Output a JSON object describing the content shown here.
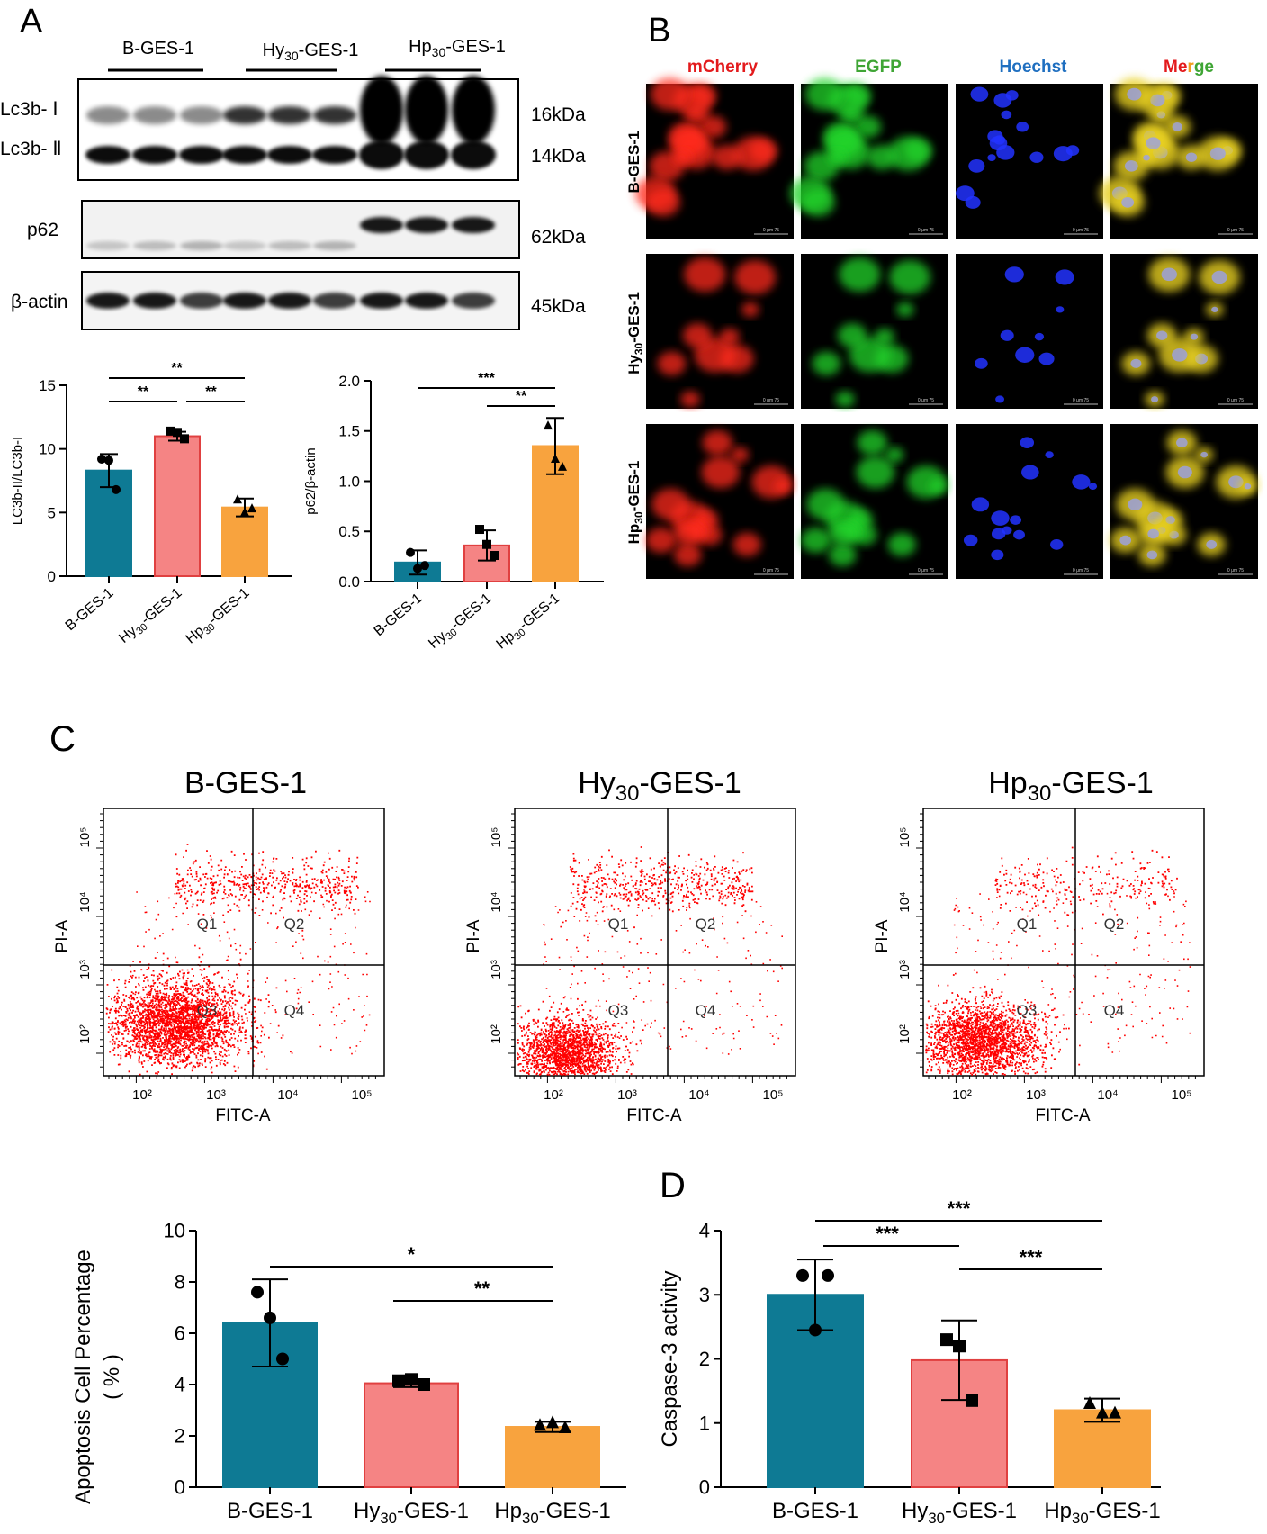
{
  "panel_labels": {
    "a": "A",
    "b": "B",
    "c": "C",
    "d": "D"
  },
  "colors": {
    "teal": "#0e7a94",
    "pink": "#f58484",
    "orange": "#f8a33e",
    "mcherry": "#e31a1c",
    "egfp": "#3fa535",
    "hoechst": "#1f6fc0",
    "flow": "#ff0000"
  },
  "western": {
    "groups": [
      {
        "base": "B-GES-1",
        "sub": ""
      },
      {
        "base": "Hy",
        "sub": "30",
        "rest": "-GES-1"
      },
      {
        "base": "Hp",
        "sub": "30",
        "rest": "-GES-1"
      }
    ],
    "lc3_label_1": "Lc3b- Ⅰ",
    "lc3_label_2": "Lc3b- Ⅱ",
    "p62_label": "p62",
    "actin_label": "β-actin",
    "kda_16": "16kDa",
    "kda_14": "14kDa",
    "kda_62": "62kDa",
    "kda_45": "45kDa"
  },
  "fluorescence": {
    "channels": [
      "mCherry",
      "EGFP",
      "Hoechst",
      "Merge"
    ],
    "merge_letters": [
      "Me",
      "r",
      "ge"
    ],
    "rows": [
      {
        "base": "B-GES-1",
        "sub": "",
        "rest": ""
      },
      {
        "base": "Hy",
        "sub": "30",
        "rest": "-GES-1"
      },
      {
        "base": "Hp",
        "sub": "30",
        "rest": "-GES-1"
      }
    ],
    "scale_text": "0    μm    75"
  },
  "flow": {
    "titles": [
      {
        "base": "B-GES-1",
        "sub": "",
        "rest": ""
      },
      {
        "base": "Hy",
        "sub": "30",
        "rest": "-GES-1"
      },
      {
        "base": "Hp",
        "sub": "30",
        "rest": "-GES-1"
      }
    ],
    "xlabel": "FITC-A",
    "ylabel": "PI-A",
    "quadrants": [
      "Q1",
      "Q2",
      "Q3",
      "Q4"
    ],
    "x_ticks": [
      "10²",
      "10³",
      "10⁴",
      "10⁵"
    ],
    "y_ticks": [
      "10²",
      "10³",
      "10⁴",
      "10⁵"
    ]
  },
  "chart_data": [
    {
      "id": "lc3-ratio",
      "type": "bar",
      "categories": [
        {
          "base": "B-GES-1",
          "sub": "",
          "rest": ""
        },
        {
          "base": "Hy",
          "sub": "30",
          "rest": "-GES-1"
        },
        {
          "base": "Hp",
          "sub": "30",
          "rest": "-GES-1"
        }
      ],
      "values": [
        8.3,
        11.0,
        5.4
      ],
      "errors": [
        1.3,
        0.35,
        0.7
      ],
      "points": [
        [
          9.2,
          9.1,
          6.8
        ],
        [
          11.4,
          11.3,
          10.8
        ],
        [
          6.0,
          5.0,
          5.3
        ]
      ],
      "markers": [
        "circle",
        "square",
        "triangle"
      ],
      "ylabel": "LC3b-II/LC3b-I",
      "ylim": [
        0,
        15
      ],
      "yticks": [
        "0",
        "5",
        "10",
        "15"
      ],
      "significance": [
        {
          "from": 0,
          "to": 2,
          "label": "**"
        },
        {
          "from": 0,
          "to": 1,
          "label": "**"
        },
        {
          "from": 1,
          "to": 2,
          "label": "**"
        }
      ]
    },
    {
      "id": "p62-ratio",
      "type": "bar",
      "categories": [
        {
          "base": "B-GES-1",
          "sub": "",
          "rest": ""
        },
        {
          "base": "Hy",
          "sub": "30",
          "rest": "-GES-1"
        },
        {
          "base": "Hp",
          "sub": "30",
          "rest": "-GES-1"
        }
      ],
      "values": [
        0.19,
        0.36,
        1.35
      ],
      "errors": [
        0.12,
        0.15,
        0.28
      ],
      "points": [
        [
          0.29,
          0.13,
          0.16
        ],
        [
          0.52,
          0.37,
          0.26
        ],
        [
          1.55,
          1.22,
          1.14
        ]
      ],
      "markers": [
        "circle",
        "square",
        "triangle"
      ],
      "ylabel": "p62/β-actin",
      "ylim": [
        0,
        2.0
      ],
      "yticks": [
        "0.0",
        "0.5",
        "1.0",
        "1.5",
        "2.0"
      ],
      "significance": [
        {
          "from": 0,
          "to": 2,
          "label": "***"
        },
        {
          "from": 1,
          "to": 2,
          "label": "**"
        }
      ]
    },
    {
      "id": "apoptosis",
      "type": "bar",
      "categories": [
        {
          "base": "B-GES-1",
          "sub": "",
          "rest": ""
        },
        {
          "base": "Hy",
          "sub": "30",
          "rest": "-GES-1"
        },
        {
          "base": "Hp",
          "sub": "30",
          "rest": "-GES-1"
        }
      ],
      "values": [
        6.4,
        4.05,
        2.35
      ],
      "errors": [
        1.7,
        0.15,
        0.2
      ],
      "points": [
        [
          7.6,
          6.6,
          5.0
        ],
        [
          4.15,
          4.2,
          4.0
        ],
        [
          2.4,
          2.5,
          2.3
        ]
      ],
      "markers": [
        "circle",
        "square",
        "triangle"
      ],
      "ylabel_line1": "Apoptosis Cell  Percentage",
      "ylabel_line2": "( % )",
      "ylim": [
        0,
        10
      ],
      "yticks": [
        "0",
        "2",
        "4",
        "6",
        "8",
        "10"
      ],
      "significance": [
        {
          "from": 0,
          "to": 2,
          "label": "*"
        },
        {
          "from": 1,
          "to": 2,
          "label": "**"
        }
      ]
    },
    {
      "id": "caspase",
      "type": "bar",
      "categories": [
        {
          "base": "B-GES-1",
          "sub": "",
          "rest": ""
        },
        {
          "base": "Hy",
          "sub": "30",
          "rest": "-GES-1"
        },
        {
          "base": "Hp",
          "sub": "30",
          "rest": "-GES-1"
        }
      ],
      "values": [
        3.0,
        1.98,
        1.2
      ],
      "errors": [
        0.55,
        0.62,
        0.18
      ],
      "points": [
        [
          3.3,
          2.45,
          3.3
        ],
        [
          2.3,
          2.2,
          1.35
        ],
        [
          1.3,
          1.15,
          1.15
        ]
      ],
      "markers": [
        "circle",
        "square",
        "triangle"
      ],
      "ylabel": "Caspase-3 activity",
      "ylim": [
        0,
        4
      ],
      "yticks": [
        "0",
        "1",
        "2",
        "3",
        "4"
      ],
      "significance": [
        {
          "from": 0,
          "to": 2,
          "label": "***"
        },
        {
          "from": 0,
          "to": 1,
          "label": "***"
        },
        {
          "from": 1,
          "to": 2,
          "label": "***"
        }
      ]
    }
  ]
}
